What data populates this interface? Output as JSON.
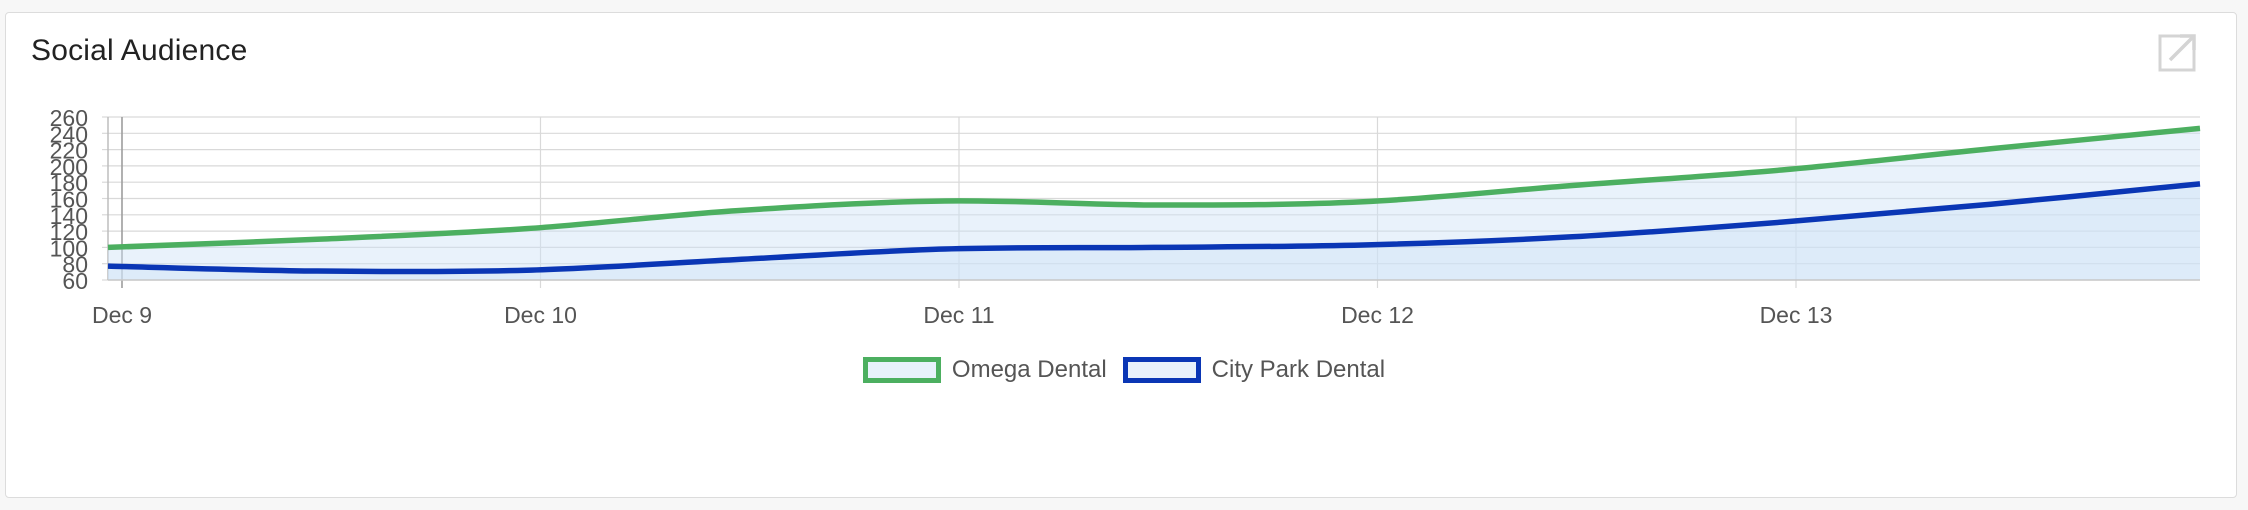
{
  "card": {
    "title": "Social Audience",
    "expand_icon": "external-link-icon"
  },
  "colors": {
    "series_1": "#4caf60",
    "series_2": "#0a36b5",
    "fill": "#cfe2f7",
    "grid": "#d9d9d9"
  },
  "chart_data": {
    "type": "area",
    "title": "Social Audience",
    "xlabel": "",
    "ylabel": "",
    "x": [
      0,
      0.5,
      1,
      1.5,
      2,
      2.5,
      3,
      3.5,
      4,
      4.5,
      5
    ],
    "categories": [
      "Dec 9",
      "Dec 10",
      "Dec 11",
      "Dec 12",
      "Dec 13"
    ],
    "ylim": [
      60,
      260
    ],
    "yticks": [
      60,
      80,
      100,
      120,
      140,
      160,
      180,
      200,
      220,
      240,
      260
    ],
    "grid": true,
    "legend_position": "bottom",
    "series": [
      {
        "name": "Omega Dental",
        "color": "#4caf60",
        "values": [
          100,
          110,
          123,
          145,
          157,
          152,
          156,
          176,
          195,
          221,
          246
        ]
      },
      {
        "name": "City Park Dental",
        "color": "#0a36b5",
        "values": [
          77,
          71,
          72,
          85,
          98,
          100,
          103,
          113,
          131,
          153,
          178
        ]
      }
    ]
  }
}
